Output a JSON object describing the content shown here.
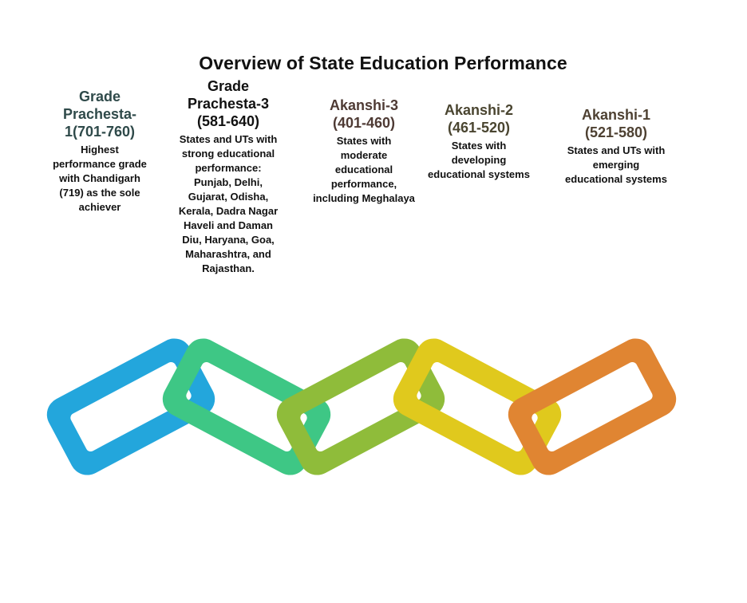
{
  "title": "Overview of State Education Performance",
  "links": [
    {
      "heading_lines": [
        "Grade",
        "Prachesta-",
        "1(701-760)"
      ],
      "description_lines": [
        "Highest",
        "performance grade",
        "with Chandigarh",
        "(719) as the sole",
        "achiever"
      ],
      "color": "#23a6dc"
    },
    {
      "heading_lines": [
        "Grade",
        "Prachesta-3",
        "(581-640)"
      ],
      "description_lines": [
        "States and UTs with",
        "strong educational",
        "performance:",
        "Punjab, Delhi,",
        "Gujarat, Odisha,",
        "Kerala, Dadra Nagar",
        "Haveli and Daman",
        "Diu, Haryana, Goa,",
        "Maharashtra, and",
        "Rajasthan."
      ],
      "color": "#3ec785"
    },
    {
      "heading_lines": [
        "Akanshi-3",
        "(401-460)"
      ],
      "description_lines": [
        "States with",
        "moderate",
        "educational",
        "performance,",
        "including Meghalaya"
      ],
      "color": "#8fbc3a"
    },
    {
      "heading_lines": [
        "Akanshi-2",
        "(461-520)"
      ],
      "description_lines": [
        "States with",
        "developing",
        "educational systems"
      ],
      "color": "#e0c91d"
    },
    {
      "heading_lines": [
        "Akanshi-1",
        "(521-580)"
      ],
      "description_lines": [
        "States and UTs with",
        "emerging",
        "educational systems"
      ],
      "color": "#e08532"
    }
  ]
}
